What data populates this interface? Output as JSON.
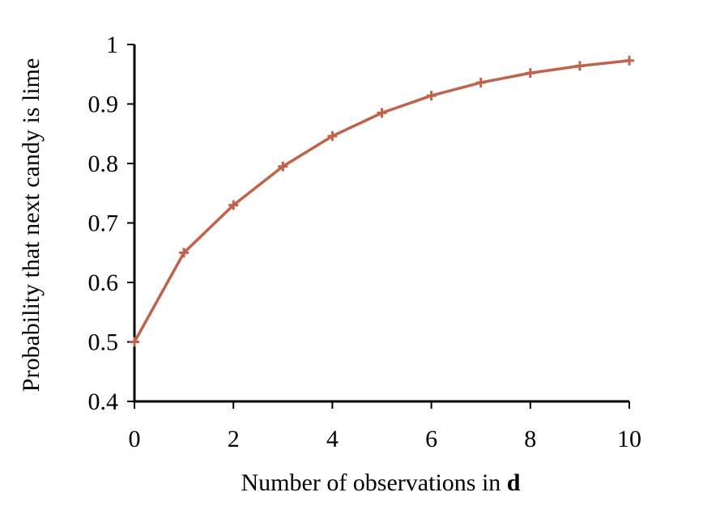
{
  "chart_data": {
    "type": "line",
    "xlabel": "Number of observations in ",
    "xlabel_bold": "d",
    "ylabel": "Probability that next candy is lime",
    "xlim": [
      0,
      10
    ],
    "ylim": [
      0.4,
      1
    ],
    "x_ticks": [
      0,
      2,
      4,
      6,
      8,
      10
    ],
    "x_tick_labels": [
      "0",
      "2",
      "4",
      "6",
      "8",
      "10"
    ],
    "y_ticks": [
      0.4,
      0.5,
      0.6,
      0.7,
      0.8,
      0.9,
      1.0
    ],
    "y_tick_labels": [
      "0.4",
      "0.5",
      "0.6",
      "0.7",
      "0.8",
      "0.9",
      "1"
    ],
    "grid": false,
    "legend": "none",
    "series": [
      {
        "color": "#c0634a",
        "marker": "plus",
        "x": [
          0,
          1,
          2,
          3,
          4,
          5,
          6,
          7,
          8,
          9,
          10
        ],
        "y": [
          0.5,
          0.65,
          0.73,
          0.795,
          0.846,
          0.885,
          0.914,
          0.936,
          0.952,
          0.964,
          0.973
        ]
      }
    ]
  }
}
